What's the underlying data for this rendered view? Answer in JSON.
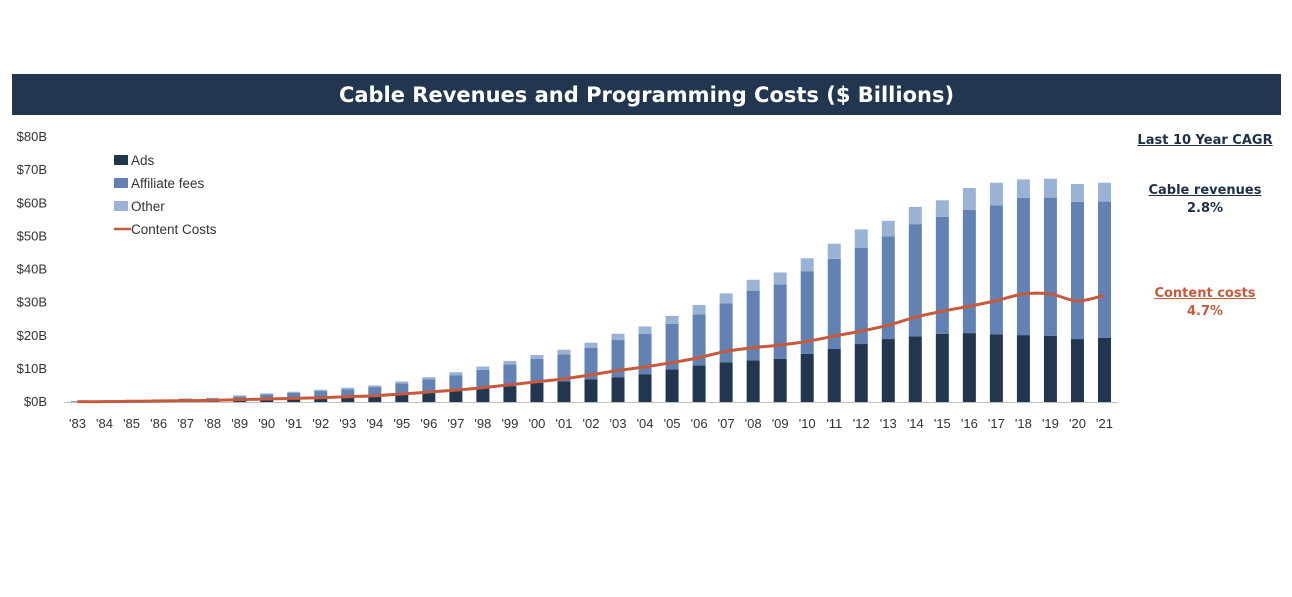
{
  "chart_data": {
    "type": "bar",
    "title": "Cable Revenues and Programming Costs ($ Billions)",
    "xlabel": "",
    "ylabel": "",
    "ylim": [
      0,
      80
    ],
    "y_ticks": [
      "$0B",
      "$10B",
      "$20B",
      "$30B",
      "$40B",
      "$50B",
      "$60B",
      "$70B",
      "$80B"
    ],
    "y_tick_values": [
      0,
      10,
      20,
      30,
      40,
      50,
      60,
      70,
      80
    ],
    "categories": [
      "'83",
      "'84",
      "'85",
      "'86",
      "'87",
      "'88",
      "'89",
      "'90",
      "'91",
      "'92",
      "'93",
      "'94",
      "'95",
      "'96",
      "'97",
      "'98",
      "'99",
      "'00",
      "'01",
      "'02",
      "'03",
      "'04",
      "'05",
      "'06",
      "'07",
      "'08",
      "'09",
      "'10",
      "'11",
      "'12",
      "'13",
      "'14",
      "'15",
      "'16",
      "'17",
      "'18",
      "'19",
      "'20",
      "'21"
    ],
    "series": [
      {
        "name": "Ads",
        "color": "#22374f",
        "values": [
          0.1,
          0.2,
          0.3,
          0.4,
          0.5,
          0.6,
          0.7,
          0.9,
          1.0,
          1.1,
          1.3,
          1.6,
          2.2,
          2.8,
          3.5,
          4.2,
          4.8,
          5.8,
          6.2,
          6.8,
          7.4,
          8.4,
          9.8,
          11.0,
          12.0,
          12.6,
          13.0,
          14.5,
          16.0,
          17.5,
          19.0,
          19.8,
          20.6,
          20.8,
          20.4,
          20.2,
          20.0,
          19.0,
          19.4
        ]
      },
      {
        "name": "Affiliate fees",
        "color": "#6182b3",
        "values": [
          0.1,
          0.2,
          0.3,
          0.3,
          0.4,
          0.5,
          1.0,
          1.4,
          1.8,
          2.2,
          2.5,
          2.9,
          3.4,
          4.0,
          4.6,
          5.5,
          6.5,
          7.2,
          8.2,
          9.5,
          11.3,
          12.2,
          13.8,
          15.5,
          17.8,
          21.0,
          22.5,
          25.0,
          27.2,
          29.0,
          31.0,
          33.9,
          35.3,
          37.2,
          39.0,
          41.4,
          41.7,
          41.4,
          41.1
        ]
      },
      {
        "name": "Other",
        "color": "#9ab3d5",
        "values": [
          0.1,
          0.1,
          0.1,
          0.1,
          0.2,
          0.2,
          0.3,
          0.3,
          0.3,
          0.4,
          0.5,
          0.5,
          0.6,
          0.7,
          0.9,
          1.0,
          1.1,
          1.2,
          1.4,
          1.6,
          1.9,
          2.2,
          2.4,
          2.8,
          3.0,
          3.3,
          3.6,
          3.9,
          4.6,
          5.6,
          4.7,
          5.2,
          5.0,
          6.6,
          6.8,
          5.6,
          5.7,
          5.4,
          5.7
        ]
      },
      {
        "name": "Content Costs",
        "type": "line",
        "color": "#c55a3c",
        "values": [
          0.1,
          0.1,
          0.2,
          0.3,
          0.4,
          0.5,
          0.7,
          0.9,
          1.1,
          1.3,
          1.6,
          1.9,
          2.4,
          3.0,
          3.6,
          4.3,
          5.2,
          6.1,
          7.0,
          8.2,
          9.5,
          10.6,
          11.9,
          13.4,
          15.3,
          16.4,
          17.2,
          18.3,
          19.9,
          21.4,
          23.2,
          25.6,
          27.4,
          28.9,
          30.6,
          32.6,
          32.6,
          30.5,
          32.2
        ]
      }
    ],
    "legend": [
      "Ads",
      "Affiliate fees",
      "Other",
      "Content Costs"
    ],
    "legend_position": "top-left",
    "grid": false
  },
  "cagr": {
    "title": "Last 10 Year CAGR",
    "revenues_label": "Cable revenues",
    "revenues_value": "2.8%",
    "costs_label": "Content costs",
    "costs_value": "4.7%"
  }
}
